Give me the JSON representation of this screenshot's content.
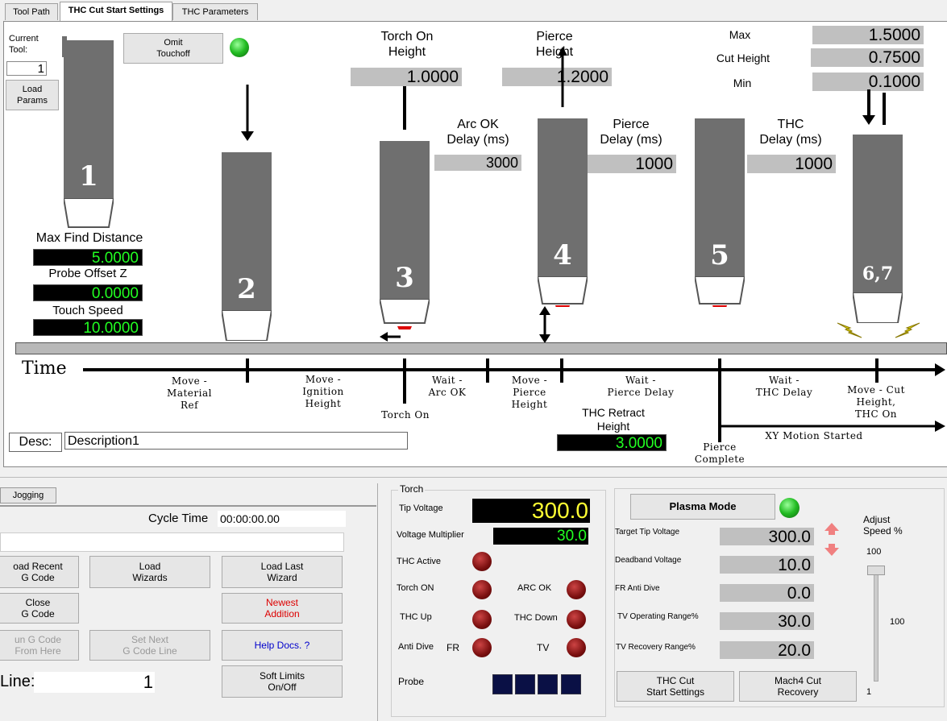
{
  "tabs": [
    "Tool Path",
    "THC Cut Start Settings",
    "THC Parameters"
  ],
  "tool": {
    "label": "Current\nTool:",
    "value": "1",
    "load_params": "Load\nParams",
    "omit_touchoff": "Omit\nTouchoff",
    "torch_numbers": [
      "1",
      "2",
      "3",
      "4",
      "5",
      "6,7"
    ]
  },
  "find": {
    "max_find_label": "Max Find Distance",
    "max_find_value": "5.0000",
    "probe_offset_label": "Probe Offset Z",
    "probe_offset_value": "0.0000",
    "touch_speed_label": "Touch Speed",
    "touch_speed_value": "10.0000"
  },
  "heights": {
    "torch_on_label": "Torch On\nHeight",
    "torch_on_value": "1.0000",
    "pierce_label": "Pierce\nHeight",
    "pierce_value": "1.2000",
    "max_label": "Max",
    "max_value": "1.5000",
    "cut_label": "Cut Height",
    "cut_value": "0.7500",
    "min_label": "Min",
    "min_value": "0.1000"
  },
  "delays": {
    "arc_ok_label": "Arc OK\nDelay (ms)",
    "arc_ok_value": "3000",
    "pierce_label": "Pierce\nDelay (ms)",
    "pierce_value": "1000",
    "thc_label": "THC\nDelay (ms)",
    "thc_value": "1000"
  },
  "timeline": {
    "title": "Time",
    "steps": [
      "Move -\nMaterial\nRef",
      "Move -\nIgnition\nHeight",
      "Torch On",
      "Wait -\nArc OK",
      "Move -\nPierce\nHeight",
      "Wait -\nPierce Delay",
      "Pierce\nComplete",
      "Wait -\nTHC Delay",
      "Move - Cut\nHeight,\nTHC On",
      "XY Motion Started"
    ],
    "retract_label": "THC Retract\nHeight",
    "retract_value": "3.0000"
  },
  "desc": {
    "label": "Desc:",
    "value": "Description1"
  },
  "left_panel": {
    "tab": "Jogging",
    "cycle_time_label": "Cycle Time",
    "cycle_time_value": "00:00:00.00",
    "buttons": {
      "load_recent": "oad Recent\nG Code",
      "load_wizards": "Load\nWizards",
      "load_last_wizard": "Load Last\nWizard",
      "close_gcode": "Close\nG Code",
      "newest_addition": "Newest\nAddition",
      "run_from_here": "un G Code\nFrom Here",
      "set_next_line": "Set Next\nG Code Line",
      "help_docs": "Help Docs. ?",
      "soft_limits": "Soft Limits\nOn/Off"
    },
    "line_label": "Line:",
    "line_value": "1"
  },
  "torch_panel": {
    "title": "Torch",
    "tip_voltage_label": "Tip Voltage",
    "tip_voltage_value": "300.0",
    "multiplier_label": "Voltage Multiplier",
    "multiplier_value": "30.0",
    "thc_active": "THC Active",
    "torch_on": "Torch ON",
    "arc_ok": "ARC OK",
    "thc_up": "THC Up",
    "thc_down": "THC Down",
    "anti_dive": "Anti Dive",
    "fr": "FR",
    "tv": "TV",
    "probe": "Probe"
  },
  "plasma_panel": {
    "plasma_mode": "Plasma Mode",
    "target_tip_label": "Target Tip Voltage",
    "target_tip_value": "300.0",
    "deadband_label": "Deadband Voltage",
    "deadband_value": "10.0",
    "fr_anti_dive_label": "FR Anti Dive",
    "fr_anti_dive_value": "0.0",
    "tv_operating_label": "TV Operating Range%",
    "tv_operating_value": "30.0",
    "tv_recovery_label": "TV Recovery Range%",
    "tv_recovery_value": "20.0",
    "thc_cut_start": "THC Cut\nStart Settings",
    "mach4_recovery": "Mach4 Cut\nRecovery",
    "adjust_speed_label": "Adjust\nSpeed %",
    "speed_max": "100",
    "speed_value": "100",
    "speed_min": "1",
    "speed_fraction": 1.0
  },
  "colors": {
    "torch": "#6f6f6f",
    "green_text": "#22ff22",
    "yellow_text": "#ffff33",
    "red_text": "#dd0000",
    "blue_text": "#0000cc"
  }
}
